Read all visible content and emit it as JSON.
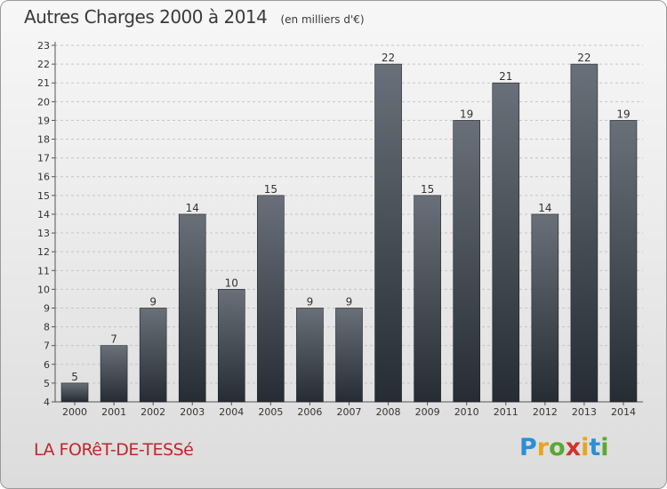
{
  "header": {
    "title": "Autres Charges 2000 à 2014",
    "unit": "(en milliers d'€)"
  },
  "footer": {
    "place": "LA FORêT-DE-TESSé",
    "logo_letters": [
      "P",
      "r",
      "o",
      "x",
      "i",
      "t",
      "i"
    ],
    "logo_colors": [
      "#2b8fd6",
      "#e8a51d",
      "#5aa832",
      "#d2322c",
      "#e8a51d",
      "#2b8fd6",
      "#5aa832"
    ]
  },
  "colors": {
    "bar_top": "#6a7079",
    "bar_bottom": "#262c33",
    "place_text": "#c0262d"
  },
  "chart_data": {
    "type": "bar",
    "title": "Autres Charges 2000 à 2014",
    "unit": "(en milliers d'€)",
    "categories": [
      "2000",
      "2001",
      "2002",
      "2003",
      "2004",
      "2005",
      "2006",
      "2007",
      "2008",
      "2009",
      "2010",
      "2011",
      "2012",
      "2013",
      "2014"
    ],
    "values": [
      5,
      7,
      9,
      14,
      10,
      15,
      9,
      9,
      22,
      15,
      19,
      21,
      14,
      22,
      19
    ],
    "ylim": [
      4,
      23
    ],
    "yticks": [
      4,
      5,
      6,
      7,
      8,
      9,
      10,
      11,
      12,
      13,
      14,
      15,
      16,
      17,
      18,
      19,
      20,
      21,
      22,
      23
    ],
    "grid": true,
    "data_labels": true
  }
}
